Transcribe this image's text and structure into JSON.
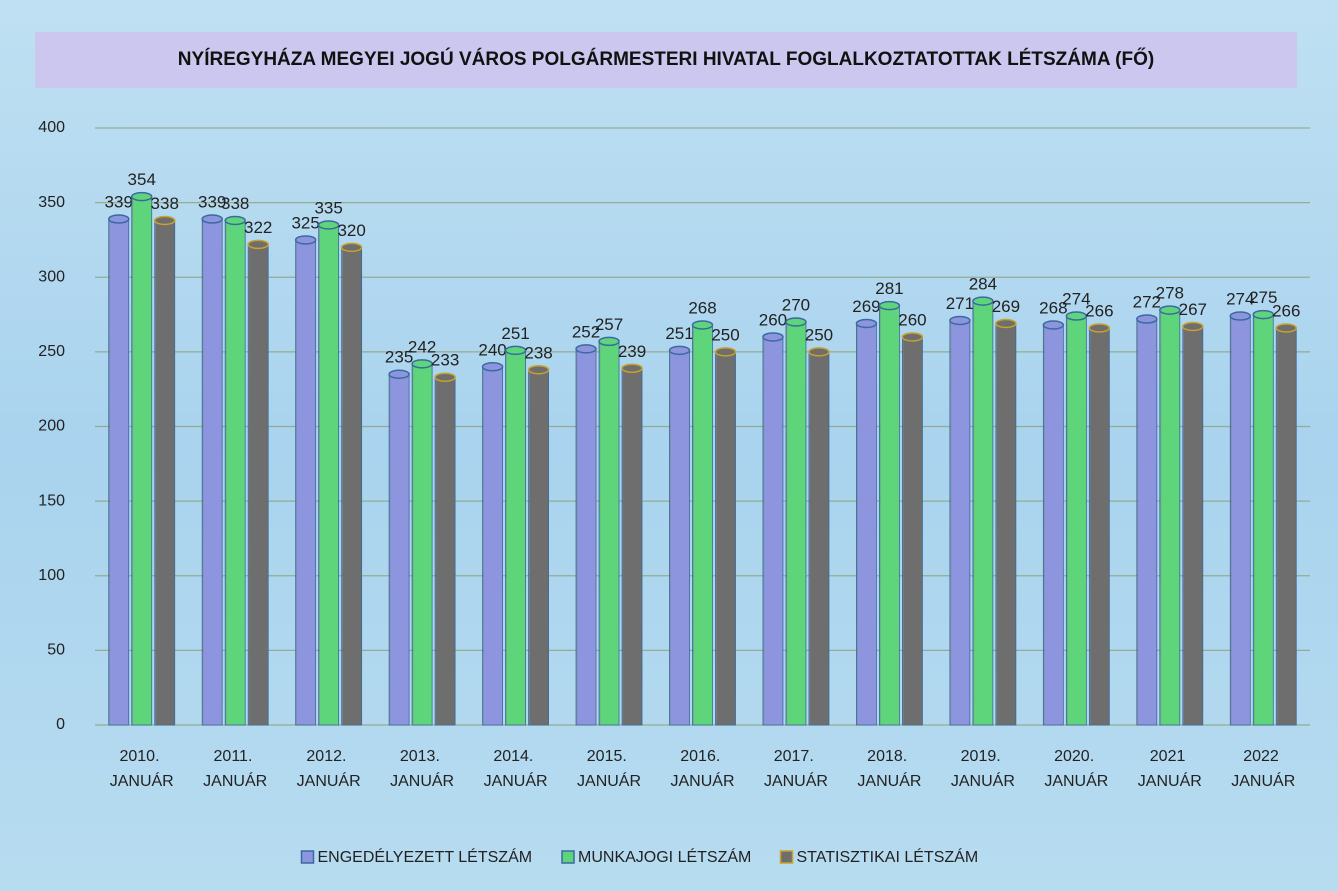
{
  "chart_data": {
    "type": "bar",
    "title": "NYÍREGYHÁZA MEGYEI JOGÚ VÁROS POLGÁRMESTERI HIVATAL FOGLALKOZTATOTTAK LÉTSZÁMA (FŐ)",
    "categories": [
      "2010. JANUÁR",
      "2011. JANUÁR",
      "2012. JANUÁR",
      "2013. JANUÁR",
      "2014. JANUÁR",
      "2015. JANUÁR",
      "2016. JANUÁR",
      "2017. JANUÁR",
      "2018. JANUÁR",
      "2019. JANUÁR",
      "2020. JANUÁR",
      "2021 JANUÁR",
      "2022 JANUÁR"
    ],
    "series": [
      {
        "name": "ENGEDÉLYEZETT LÉTSZÁM",
        "color": "#8e95df",
        "values": [
          339,
          339,
          325,
          235,
          240,
          252,
          251,
          260,
          269,
          271,
          268,
          272,
          274
        ]
      },
      {
        "name": "MUNKAJOGI LÉTSZÁM",
        "color": "#5ed57b",
        "values": [
          354,
          338,
          335,
          242,
          251,
          257,
          268,
          270,
          281,
          284,
          274,
          278,
          275
        ]
      },
      {
        "name": "STATISZTIKAI LÉTSZÁM",
        "color": "#6e6e6e",
        "values": [
          338,
          322,
          320,
          233,
          238,
          239,
          250,
          250,
          260,
          269,
          266,
          267,
          266
        ]
      }
    ],
    "ylim": [
      0,
      400
    ],
    "yticks": [
      0,
      50,
      100,
      150,
      200,
      250,
      300,
      350,
      400
    ],
    "grid": true,
    "legend": "bottom"
  }
}
